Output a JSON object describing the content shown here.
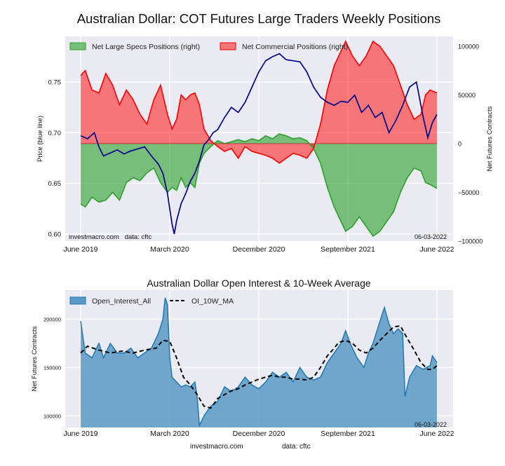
{
  "chart_data": [
    {
      "type": "area",
      "title": "Australian Dollar: COT Futures Large Traders Weekly Positions",
      "ylabel_left": "Price (blue line)",
      "ylabel_right": "Net Futures Contracts",
      "ylim_left": [
        0.593,
        0.795
      ],
      "ylim_right": [
        -100000,
        110000
      ],
      "left_ticks": [
        "0.60",
        "0.65",
        "0.70",
        "0.75"
      ],
      "left_tick_values": [
        0.6,
        0.65,
        0.7,
        0.75
      ],
      "right_ticks": [
        "100000",
        "50000",
        "0",
        "−50000",
        "−100000"
      ],
      "right_tick_values": [
        100000,
        50000,
        0,
        -50000,
        -100000
      ],
      "x_ticks": [
        "June 2019",
        "March 2020",
        "December 2020",
        "September 2021",
        "June 2022"
      ],
      "x_tick_weeks": [
        0,
        39,
        78,
        117,
        156
      ],
      "weeks": 157,
      "legend": [
        "Net Large Specs Positions (right)",
        "Net Commercial Positions (right)"
      ],
      "legend_position": "upper-left",
      "colors": {
        "specs": "#2ca02c",
        "commercial": "#ff0000",
        "price": "#00008b"
      },
      "price_anchors": [
        [
          0,
          0.697
        ],
        [
          3,
          0.694
        ],
        [
          6,
          0.7
        ],
        [
          8,
          0.686
        ],
        [
          10,
          0.677
        ],
        [
          13,
          0.68
        ],
        [
          16,
          0.683
        ],
        [
          19,
          0.679
        ],
        [
          22,
          0.682
        ],
        [
          25,
          0.684
        ],
        [
          28,
          0.686
        ],
        [
          31,
          0.677
        ],
        [
          34,
          0.669
        ],
        [
          36,
          0.66
        ],
        [
          38,
          0.64
        ],
        [
          40,
          0.61
        ],
        [
          41,
          0.6
        ],
        [
          42,
          0.613
        ],
        [
          44,
          0.63
        ],
        [
          46,
          0.64
        ],
        [
          48,
          0.652
        ],
        [
          50,
          0.66
        ],
        [
          52,
          0.672
        ],
        [
          54,
          0.688
        ],
        [
          56,
          0.693
        ],
        [
          58,
          0.7
        ],
        [
          60,
          0.703
        ],
        [
          63,
          0.715
        ],
        [
          66,
          0.725
        ],
        [
          69,
          0.72
        ],
        [
          72,
          0.73
        ],
        [
          75,
          0.745
        ],
        [
          78,
          0.76
        ],
        [
          81,
          0.771
        ],
        [
          84,
          0.775
        ],
        [
          87,
          0.778
        ],
        [
          90,
          0.772
        ],
        [
          93,
          0.771
        ],
        [
          96,
          0.77
        ],
        [
          99,
          0.76
        ],
        [
          102,
          0.745
        ],
        [
          105,
          0.735
        ],
        [
          108,
          0.73
        ],
        [
          111,
          0.727
        ],
        [
          114,
          0.731
        ],
        [
          117,
          0.73
        ],
        [
          120,
          0.737
        ],
        [
          123,
          0.72
        ],
        [
          126,
          0.727
        ],
        [
          129,
          0.715
        ],
        [
          132,
          0.72
        ],
        [
          135,
          0.7
        ],
        [
          138,
          0.712
        ],
        [
          141,
          0.727
        ],
        [
          144,
          0.745
        ],
        [
          147,
          0.75
        ],
        [
          150,
          0.715
        ],
        [
          152,
          0.695
        ],
        [
          154,
          0.71
        ],
        [
          156,
          0.718
        ]
      ],
      "specs_anchors": [
        [
          0,
          -62000
        ],
        [
          2,
          -65000
        ],
        [
          5,
          -55000
        ],
        [
          8,
          -60000
        ],
        [
          11,
          -58000
        ],
        [
          14,
          -50000
        ],
        [
          17,
          -58000
        ],
        [
          20,
          -40000
        ],
        [
          23,
          -35000
        ],
        [
          26,
          -38000
        ],
        [
          29,
          -30000
        ],
        [
          32,
          -25000
        ],
        [
          35,
          -40000
        ],
        [
          38,
          -50000
        ],
        [
          40,
          -45000
        ],
        [
          42,
          -48000
        ],
        [
          44,
          -35000
        ],
        [
          46,
          -45000
        ],
        [
          48,
          -40000
        ],
        [
          50,
          -45000
        ],
        [
          52,
          -20000
        ],
        [
          54,
          -10000
        ],
        [
          57,
          -3000
        ],
        [
          60,
          3000
        ],
        [
          63,
          0
        ],
        [
          66,
          2000
        ],
        [
          69,
          4000
        ],
        [
          72,
          2000
        ],
        [
          75,
          5000
        ],
        [
          78,
          3000
        ],
        [
          81,
          8000
        ],
        [
          84,
          5000
        ],
        [
          87,
          10000
        ],
        [
          90,
          8000
        ],
        [
          93,
          5000
        ],
        [
          96,
          6000
        ],
        [
          99,
          3000
        ],
        [
          102,
          -5000
        ],
        [
          105,
          -20000
        ],
        [
          108,
          -45000
        ],
        [
          111,
          -65000
        ],
        [
          114,
          -80000
        ],
        [
          116,
          -90000
        ],
        [
          119,
          -85000
        ],
        [
          122,
          -75000
        ],
        [
          125,
          -85000
        ],
        [
          128,
          -95000
        ],
        [
          131,
          -90000
        ],
        [
          134,
          -80000
        ],
        [
          137,
          -70000
        ],
        [
          140,
          -50000
        ],
        [
          143,
          -35000
        ],
        [
          146,
          -25000
        ],
        [
          149,
          -28000
        ],
        [
          151,
          -40000
        ],
        [
          153,
          -42000
        ],
        [
          156,
          -46000
        ]
      ],
      "commercial_anchors": [
        [
          0,
          70000
        ],
        [
          2,
          75000
        ],
        [
          5,
          55000
        ],
        [
          8,
          52000
        ],
        [
          11,
          72000
        ],
        [
          14,
          60000
        ],
        [
          17,
          40000
        ],
        [
          20,
          55000
        ],
        [
          23,
          45000
        ],
        [
          26,
          30000
        ],
        [
          29,
          20000
        ],
        [
          32,
          45000
        ],
        [
          35,
          60000
        ],
        [
          38,
          30000
        ],
        [
          40,
          15000
        ],
        [
          42,
          25000
        ],
        [
          44,
          50000
        ],
        [
          46,
          45000
        ],
        [
          48,
          50000
        ],
        [
          50,
          52000
        ],
        [
          52,
          40000
        ],
        [
          54,
          15000
        ],
        [
          57,
          3000
        ],
        [
          60,
          -3000
        ],
        [
          63,
          -8000
        ],
        [
          66,
          -5000
        ],
        [
          69,
          -15000
        ],
        [
          72,
          -3000
        ],
        [
          75,
          -8000
        ],
        [
          78,
          -10000
        ],
        [
          81,
          -12000
        ],
        [
          84,
          -15000
        ],
        [
          87,
          -20000
        ],
        [
          90,
          -15000
        ],
        [
          93,
          -10000
        ],
        [
          96,
          -12000
        ],
        [
          99,
          -15000
        ],
        [
          102,
          -5000
        ],
        [
          105,
          20000
        ],
        [
          108,
          55000
        ],
        [
          111,
          80000
        ],
        [
          114,
          95000
        ],
        [
          116,
          105000
        ],
        [
          119,
          90000
        ],
        [
          122,
          80000
        ],
        [
          125,
          90000
        ],
        [
          128,
          105000
        ],
        [
          131,
          100000
        ],
        [
          134,
          90000
        ],
        [
          137,
          80000
        ],
        [
          140,
          60000
        ],
        [
          143,
          40000
        ],
        [
          146,
          25000
        ],
        [
          149,
          30000
        ],
        [
          151,
          50000
        ],
        [
          153,
          55000
        ],
        [
          156,
          52000
        ]
      ],
      "watermark": "investmacro.com   data: cftc",
      "date_label": "06-03-2022"
    },
    {
      "type": "area",
      "title": "Australian Dollar Open Interest & 10-Week Average",
      "ylabel": "Net Futures Contracts",
      "ylim": [
        88000,
        230000
      ],
      "y_ticks": [
        "200000",
        "150000",
        "100000"
      ],
      "y_tick_values": [
        200000,
        150000,
        100000
      ],
      "x_ticks": [
        "June 2019",
        "March 2020",
        "December 2020",
        "September 2021",
        "June 2022"
      ],
      "x_tick_weeks": [
        0,
        39,
        78,
        117,
        156
      ],
      "weeks": 157,
      "legend": [
        "Open_Interest_All",
        "OI_10W_MA"
      ],
      "legend_position": "upper-left",
      "colors": {
        "oi_fill": "#5a9ac4",
        "oi_line": "#1f77b4",
        "ma": "#000000"
      },
      "oi_anchors": [
        [
          0,
          198000
        ],
        [
          2,
          165000
        ],
        [
          5,
          160000
        ],
        [
          8,
          175000
        ],
        [
          10,
          160000
        ],
        [
          13,
          175000
        ],
        [
          16,
          165000
        ],
        [
          19,
          165000
        ],
        [
          22,
          170000
        ],
        [
          25,
          160000
        ],
        [
          28,
          165000
        ],
        [
          31,
          170000
        ],
        [
          34,
          185000
        ],
        [
          36,
          200000
        ],
        [
          37,
          222000
        ],
        [
          38,
          215000
        ],
        [
          39,
          160000
        ],
        [
          40,
          140000
        ],
        [
          42,
          135000
        ],
        [
          44,
          130000
        ],
        [
          46,
          132000
        ],
        [
          48,
          130000
        ],
        [
          50,
          135000
        ],
        [
          51,
          120000
        ],
        [
          52,
          90000
        ],
        [
          54,
          100000
        ],
        [
          57,
          110000
        ],
        [
          60,
          115000
        ],
        [
          63,
          130000
        ],
        [
          66,
          125000
        ],
        [
          69,
          130000
        ],
        [
          72,
          140000
        ],
        [
          75,
          132000
        ],
        [
          78,
          128000
        ],
        [
          81,
          135000
        ],
        [
          84,
          145000
        ],
        [
          87,
          140000
        ],
        [
          90,
          145000
        ],
        [
          93,
          135000
        ],
        [
          96,
          150000
        ],
        [
          99,
          140000
        ],
        [
          102,
          137000
        ],
        [
          105,
          140000
        ],
        [
          108,
          155000
        ],
        [
          111,
          165000
        ],
        [
          114,
          175000
        ],
        [
          116,
          188000
        ],
        [
          118,
          175000
        ],
        [
          121,
          160000
        ],
        [
          124,
          150000
        ],
        [
          126,
          165000
        ],
        [
          128,
          175000
        ],
        [
          130,
          190000
        ],
        [
          132,
          205000
        ],
        [
          133,
          212000
        ],
        [
          135,
          195000
        ],
        [
          137,
          185000
        ],
        [
          139,
          190000
        ],
        [
          141,
          185000
        ],
        [
          142,
          120000
        ],
        [
          144,
          140000
        ],
        [
          147,
          152000
        ],
        [
          150,
          148000
        ],
        [
          153,
          152000
        ],
        [
          154,
          162000
        ],
        [
          156,
          155000
        ]
      ],
      "ma_anchors": [
        [
          0,
          165000
        ],
        [
          3,
          172000
        ],
        [
          8,
          168000
        ],
        [
          13,
          165000
        ],
        [
          18,
          167000
        ],
        [
          23,
          165000
        ],
        [
          28,
          168000
        ],
        [
          33,
          170000
        ],
        [
          36,
          178000
        ],
        [
          39,
          177000
        ],
        [
          42,
          160000
        ],
        [
          45,
          140000
        ],
        [
          48,
          132000
        ],
        [
          51,
          122000
        ],
        [
          54,
          110000
        ],
        [
          57,
          108000
        ],
        [
          60,
          118000
        ],
        [
          63,
          122000
        ],
        [
          66,
          126000
        ],
        [
          69,
          128000
        ],
        [
          72,
          132000
        ],
        [
          75,
          135000
        ],
        [
          78,
          138000
        ],
        [
          81,
          140000
        ],
        [
          84,
          142000
        ],
        [
          87,
          140000
        ],
        [
          90,
          140000
        ],
        [
          93,
          138000
        ],
        [
          96,
          138000
        ],
        [
          99,
          137000
        ],
        [
          102,
          140000
        ],
        [
          105,
          150000
        ],
        [
          108,
          162000
        ],
        [
          111,
          170000
        ],
        [
          113,
          176000
        ],
        [
          116,
          178000
        ],
        [
          119,
          175000
        ],
        [
          122,
          168000
        ],
        [
          125,
          165000
        ],
        [
          128,
          170000
        ],
        [
          131,
          178000
        ],
        [
          134,
          185000
        ],
        [
          137,
          192000
        ],
        [
          140,
          193000
        ],
        [
          143,
          180000
        ],
        [
          146,
          168000
        ],
        [
          149,
          155000
        ],
        [
          152,
          148000
        ],
        [
          154,
          148000
        ],
        [
          156,
          152000
        ]
      ],
      "date_label": "06-03-2022",
      "footer": {
        "site": "investmacro.com",
        "source": "data: cftc"
      }
    }
  ]
}
